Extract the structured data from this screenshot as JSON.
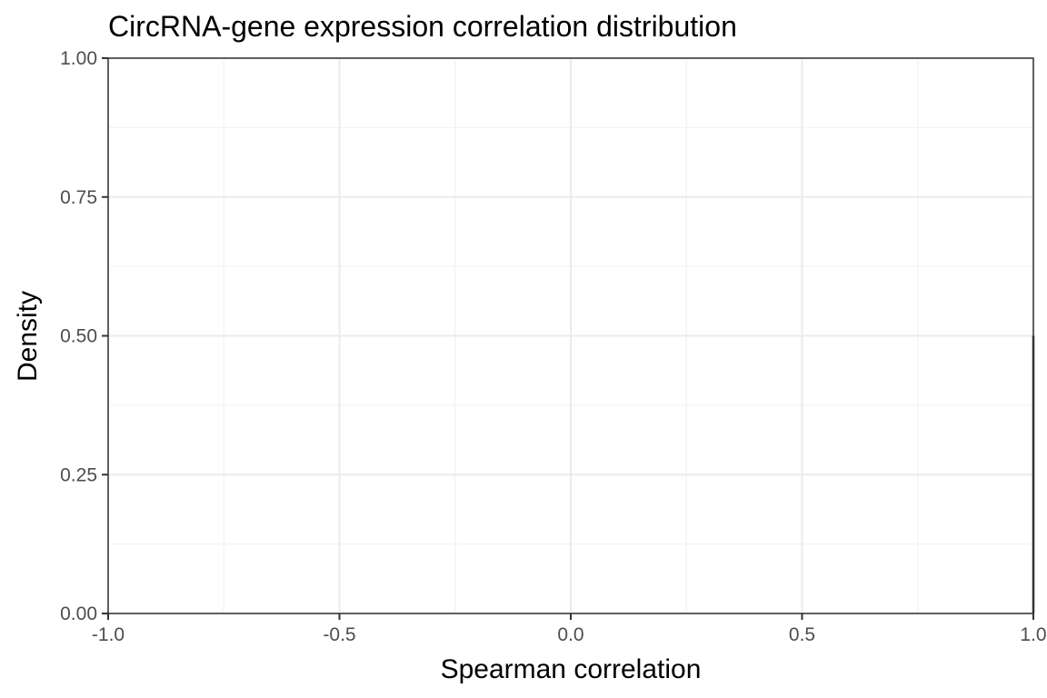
{
  "chart_data": {
    "type": "area",
    "title": "CircRNA-gene expression correlation distribution",
    "xlabel": "Spearman correlation",
    "ylabel": "Density",
    "xlim": [
      -1.0,
      1.0
    ],
    "ylim": [
      0.0,
      1.0
    ],
    "x_ticks": [
      -1.0,
      -0.5,
      0.0,
      0.5,
      1.0
    ],
    "x_tick_labels": [
      "-1.0",
      "-0.5",
      "0.0",
      "0.5",
      "1.0"
    ],
    "y_ticks": [
      0.0,
      0.25,
      0.5,
      0.75,
      1.0
    ],
    "y_tick_labels": [
      "0.00",
      "0.25",
      "0.50",
      "0.75",
      "1.00"
    ],
    "grid": true,
    "series": [
      {
        "x": [
          1.0,
          1.0
        ],
        "y": [
          0.0,
          0.5
        ]
      }
    ],
    "colors": {
      "series_line": "#333333",
      "panel_border": "#333333",
      "grid_major": "#ebebeb",
      "grid_minor": "#f3f3f3",
      "tick_label": "#4d4d4d",
      "text": "#000000",
      "background": "#ffffff"
    }
  }
}
